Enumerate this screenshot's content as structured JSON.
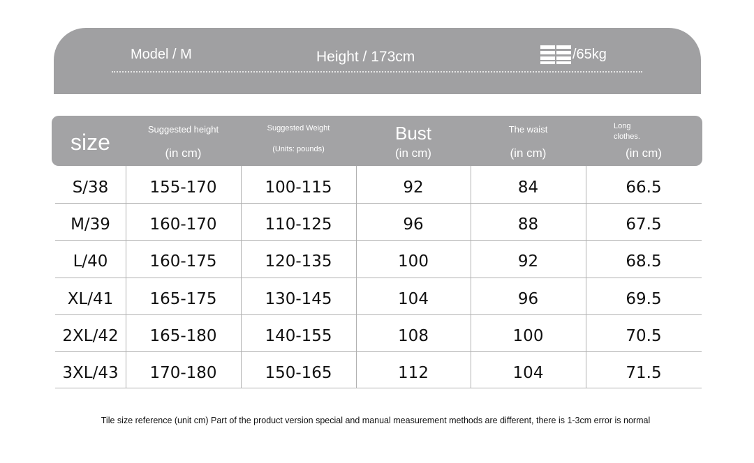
{
  "header": {
    "model": "Model / M",
    "height": "Height / 173cm",
    "weight": "/65kg"
  },
  "table": {
    "columns": [
      {
        "title": "size"
      },
      {
        "title": "Suggested height",
        "unit": "(in cm)"
      },
      {
        "title": "Suggested Weight",
        "unit": "(Units: pounds)"
      },
      {
        "title": "Bust",
        "unit": "(in cm)"
      },
      {
        "title": "The waist",
        "unit": "(in cm)"
      },
      {
        "title": "Long clothes.",
        "unit": "(in cm)"
      }
    ],
    "rows": [
      [
        "S/38",
        "155-170",
        "100-115",
        "92",
        "84",
        "66.5"
      ],
      [
        "M/39",
        "160-170",
        "110-125",
        "96",
        "88",
        "67.5"
      ],
      [
        "L/40",
        "160-175",
        "120-135",
        "100",
        "92",
        "68.5"
      ],
      [
        "XL/41",
        "165-175",
        "130-145",
        "104",
        "96",
        "69.5"
      ],
      [
        "2XL/42",
        "165-180",
        "140-155",
        "108",
        "100",
        "70.5"
      ],
      [
        "3XL/43",
        "170-180",
        "150-165",
        "112",
        "104",
        "71.5"
      ]
    ]
  },
  "note": "Tile size reference (unit cm) Part of the product version special and manual measurement methods are different, there is 1-3cm error is normal"
}
